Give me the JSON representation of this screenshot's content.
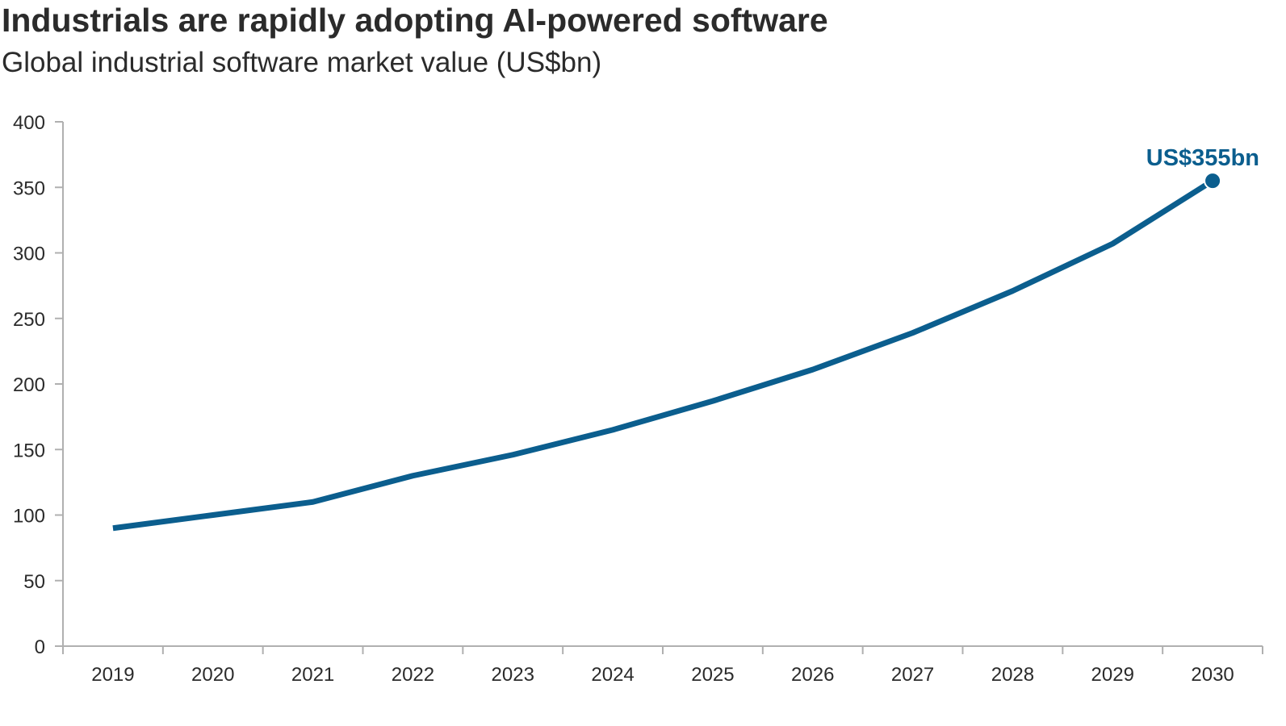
{
  "chart_data": {
    "type": "line",
    "title": "Industrials are rapidly adopting AI-powered software",
    "subtitle": "Global industrial software market value (US$bn)",
    "xlabel": "",
    "ylabel": "",
    "categories": [
      "2019",
      "2020",
      "2021",
      "2022",
      "2023",
      "2024",
      "2025",
      "2026",
      "2027",
      "2028",
      "2029",
      "2030"
    ],
    "series": [
      {
        "values": [
          90,
          100,
          110,
          130,
          146,
          165,
          187,
          211,
          239,
          271,
          307,
          355
        ]
      }
    ],
    "ylim": [
      0,
      400
    ],
    "yticks": [
      "0",
      "50",
      "100",
      "150",
      "200",
      "250",
      "300",
      "350",
      "400"
    ],
    "grid": false,
    "legend": "none",
    "annotation": {
      "label": "US$355bn",
      "category": "2030",
      "value": 355
    },
    "colors": {
      "line": "#0b5e8e",
      "annotation": "#0b5e8e",
      "axis": "#b0b0b0",
      "text": "#2b2b2b"
    }
  }
}
